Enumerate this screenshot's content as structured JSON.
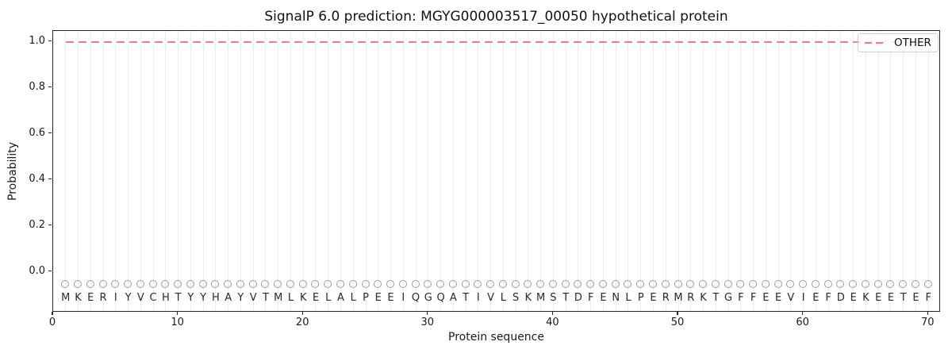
{
  "colors": {
    "dash_line": "#f08080",
    "grid": "#ededed",
    "marker_stroke": "#9b9b9b",
    "text": "#1a1a1a",
    "spine": "#262626",
    "background": "#ffffff"
  },
  "legend": {
    "entries": [
      {
        "label": "OTHER",
        "color": "#f08080",
        "style": "dashed"
      }
    ],
    "position": "upper right"
  },
  "chart_data": {
    "type": "line",
    "title": "SignalP 6.0 prediction: MGYG000003517_00050 hypothetical protein",
    "xlabel": "Protein sequence",
    "ylabel": "Probability",
    "x_tick_labels": [
      "0",
      "10",
      "20",
      "30",
      "40",
      "50",
      "60",
      "70"
    ],
    "x_tick_values": [
      0,
      10,
      20,
      30,
      40,
      50,
      60,
      70
    ],
    "y_tick_labels": [
      "0.0",
      "0.2",
      "0.4",
      "0.6",
      "0.8",
      "1.0"
    ],
    "y_tick_values": [
      0.0,
      0.2,
      0.4,
      0.6,
      0.8,
      1.0
    ],
    "xlim": [
      0,
      71
    ],
    "ylim": [
      -0.17,
      1.05
    ],
    "grid": "vertical-per-residue",
    "legend_position": "upper right",
    "sequence": "MKERIYVCHTYYHAYVTMLKELALPEEIQGQATIVLSKMSTDFENLPERMRKTGFFEEVIEFDEKEETEF",
    "sequence_length": 70,
    "marker": {
      "shape": "circle",
      "y": -0.055
    },
    "letter_row_y": -0.11,
    "series": [
      {
        "name": "OTHER",
        "style": "dashed",
        "color": "#f08080",
        "x": [
          1,
          2,
          3,
          4,
          5,
          6,
          7,
          8,
          9,
          10,
          11,
          12,
          13,
          14,
          15,
          16,
          17,
          18,
          19,
          20,
          21,
          22,
          23,
          24,
          25,
          26,
          27,
          28,
          29,
          30,
          31,
          32,
          33,
          34,
          35,
          36,
          37,
          38,
          39,
          40,
          41,
          42,
          43,
          44,
          45,
          46,
          47,
          48,
          49,
          50,
          51,
          52,
          53,
          54,
          55,
          56,
          57,
          58,
          59,
          60,
          61,
          62,
          63,
          64,
          65,
          66,
          67,
          68,
          69,
          70
        ],
        "values": [
          1.0,
          1.0,
          1.0,
          1.0,
          1.0,
          1.0,
          1.0,
          1.0,
          1.0,
          1.0,
          1.0,
          1.0,
          1.0,
          1.0,
          1.0,
          1.0,
          1.0,
          1.0,
          1.0,
          1.0,
          1.0,
          1.0,
          1.0,
          1.0,
          1.0,
          1.0,
          1.0,
          1.0,
          1.0,
          1.0,
          1.0,
          1.0,
          1.0,
          1.0,
          1.0,
          1.0,
          1.0,
          1.0,
          1.0,
          1.0,
          1.0,
          1.0,
          1.0,
          1.0,
          1.0,
          1.0,
          1.0,
          1.0,
          1.0,
          1.0,
          1.0,
          1.0,
          1.0,
          1.0,
          1.0,
          1.0,
          1.0,
          1.0,
          1.0,
          1.0,
          1.0,
          1.0,
          1.0,
          1.0,
          1.0,
          1.0,
          1.0,
          1.0,
          1.0,
          1.0
        ]
      }
    ]
  }
}
